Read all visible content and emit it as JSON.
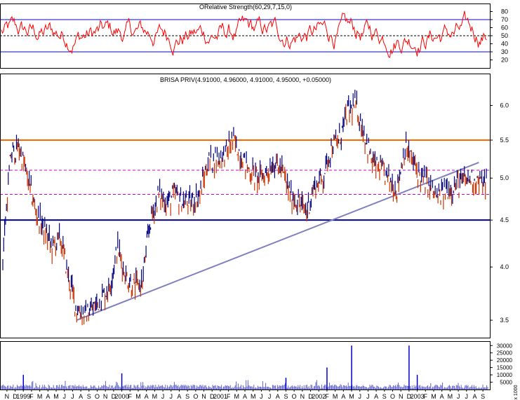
{
  "chart_data": [
    {
      "type": "line",
      "title": "ORelative Strength(60,29,7,15,0)",
      "ylim": [
        10,
        90
      ],
      "yticks": [
        20,
        30,
        40,
        50,
        60,
        70,
        80
      ],
      "reference_lines": [
        {
          "value": 70,
          "style": "solid",
          "color": "#0000ff"
        },
        {
          "value": 50,
          "style": "dashed",
          "color": "#000000"
        },
        {
          "value": 30,
          "style": "solid",
          "color": "#0000ff"
        }
      ],
      "series": [
        {
          "color": "#ff0000"
        }
      ],
      "grid": false
    },
    {
      "type": "line",
      "title": "BRISA PRIV(4.91000, 4.96000, 4.91000, 4.95000, +0.05000)",
      "scale": "log",
      "ylim": [
        3.35,
        6.5
      ],
      "yticks": [
        3.5,
        4.0,
        4.5,
        5.0,
        5.5,
        6.0
      ],
      "ytick_labels": [
        "3.5",
        "4.0",
        "4.5",
        "5.0",
        "5.5",
        "6.0"
      ],
      "horizontal_lines": [
        {
          "value": 5.5,
          "style": "solid",
          "color": "#ff6600"
        },
        {
          "value": 5.1,
          "style": "dashed",
          "color": "#cc00cc"
        },
        {
          "value": 4.8,
          "style": "dashed",
          "color": "#cc00cc"
        },
        {
          "value": 4.5,
          "style": "solid",
          "color": "#000099"
        }
      ],
      "trendline": {
        "start": [
          "1999-08",
          3.5
        ],
        "end": [
          "2003-09",
          5.2
        ],
        "color": "#8080c0"
      },
      "price_path": [
        [
          "1998-11",
          4.1
        ],
        [
          "1998-12",
          5.3
        ],
        [
          "1999-01",
          5.4
        ],
        [
          "1999-02",
          5.0
        ],
        [
          "1999-03",
          4.6
        ],
        [
          "1999-04",
          4.4
        ],
        [
          "1999-05",
          4.2
        ],
        [
          "1999-06",
          4.3
        ],
        [
          "1999-07",
          3.9
        ],
        [
          "1999-08",
          3.6
        ],
        [
          "1999-09",
          3.55
        ],
        [
          "1999-10",
          3.6
        ],
        [
          "1999-11",
          3.7
        ],
        [
          "1999-12",
          3.8
        ],
        [
          "2000-01",
          4.2
        ],
        [
          "2000-02",
          3.9
        ],
        [
          "2000-03",
          3.8
        ],
        [
          "2000-04",
          3.85
        ],
        [
          "2000-05",
          4.5
        ],
        [
          "2000-06",
          4.8
        ],
        [
          "2000-07",
          4.7
        ],
        [
          "2000-08",
          4.8
        ],
        [
          "2000-09",
          4.7
        ],
        [
          "2000-10",
          4.7
        ],
        [
          "2000-11",
          4.8
        ],
        [
          "2000-12",
          5.2
        ],
        [
          "2001-01",
          5.25
        ],
        [
          "2001-02",
          5.3
        ],
        [
          "2001-03",
          5.5
        ],
        [
          "2001-04",
          5.3
        ],
        [
          "2001-05",
          5.1
        ],
        [
          "2001-06",
          5.0
        ],
        [
          "2001-07",
          5.05
        ],
        [
          "2001-08",
          5.2
        ],
        [
          "2001-09",
          5.1
        ],
        [
          "2001-10",
          4.8
        ],
        [
          "2001-11",
          4.7
        ],
        [
          "2001-12",
          4.6
        ],
        [
          "2002-01",
          4.9
        ],
        [
          "2002-02",
          5.0
        ],
        [
          "2002-03",
          5.4
        ],
        [
          "2002-04",
          5.5
        ],
        [
          "2002-05",
          5.9
        ],
        [
          "2002-06",
          6.0
        ],
        [
          "2002-07",
          5.6
        ],
        [
          "2002-08",
          5.2
        ],
        [
          "2002-09",
          5.1
        ],
        [
          "2002-10",
          5.0
        ],
        [
          "2002-11",
          4.85
        ],
        [
          "2002-12",
          5.4
        ],
        [
          "2003-01",
          5.2
        ],
        [
          "2003-02",
          5.0
        ],
        [
          "2003-03",
          4.9
        ],
        [
          "2003-04",
          4.75
        ],
        [
          "2003-05",
          4.85
        ],
        [
          "2003-06",
          4.9
        ],
        [
          "2003-07",
          4.95
        ],
        [
          "2003-08",
          5.0
        ],
        [
          "2003-09",
          4.95
        ]
      ],
      "series": [
        {
          "color": "#000080"
        }
      ],
      "grid": false
    },
    {
      "type": "bar",
      "ylim": [
        0,
        33000
      ],
      "yticks": [
        5000,
        10000,
        15000,
        20000,
        25000,
        30000
      ],
      "ytick_labels": [
        "5000",
        "10000",
        "15000",
        "20000",
        "25000",
        "30000"
      ],
      "unit_label": "x 1000",
      "spikes": [
        [
          "1999-01",
          10000
        ],
        [
          "2000-01",
          11000
        ],
        [
          "2001-09",
          8000
        ],
        [
          "2002-02",
          15000
        ],
        [
          "2002-05",
          30000
        ],
        [
          "2002-12",
          30000
        ],
        [
          "2003-01",
          10000
        ]
      ],
      "series": [
        {
          "color": "#0000cc"
        }
      ],
      "grid": false
    }
  ],
  "x_axis": {
    "labels": [
      "N",
      "D",
      "1999",
      "F",
      "M",
      "A",
      "M",
      "J",
      "J",
      "A",
      "S",
      "O",
      "N",
      "D",
      "2000",
      "F",
      "M",
      "A",
      "M",
      "J",
      "J",
      "A",
      "S",
      "O",
      "N",
      "D",
      "2001",
      "F",
      "M",
      "A",
      "M",
      "J",
      "J",
      "A",
      "S",
      "O",
      "N",
      "D",
      "2002",
      "F",
      "M",
      "A",
      "M",
      "J",
      "J",
      "A",
      "S",
      "O",
      "N",
      "D",
      "2003",
      "F",
      "M",
      "A",
      "M",
      "J",
      "J",
      "A",
      "S"
    ],
    "start": "1998-11",
    "end": "2003-09"
  }
}
